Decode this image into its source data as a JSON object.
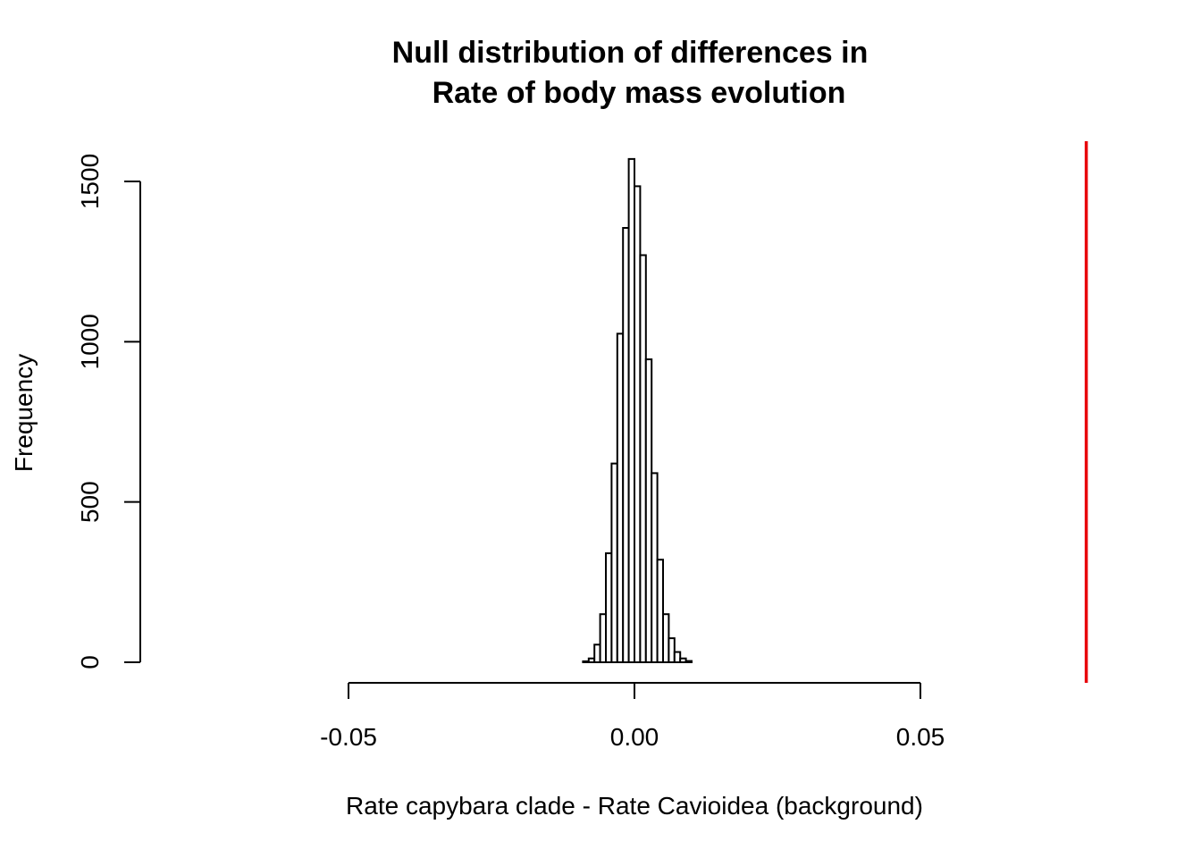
{
  "chart_data": {
    "type": "bar",
    "title": "Null distribution of differences in",
    "subtitle": "Rate of body mass evolution",
    "xlabel": "Rate capybara clade - Rate Cavioidea (background)",
    "ylabel": "Frequency",
    "xlim": [
      -0.05,
      0.05
    ],
    "ylim": [
      0,
      1500
    ],
    "x_ticks": [
      -0.05,
      0.0,
      0.05
    ],
    "x_tick_labels": [
      "-0.05",
      "0.00",
      "0.05"
    ],
    "y_ticks": [
      0,
      500,
      1000,
      1500
    ],
    "y_tick_labels": [
      "0",
      "500",
      "1000",
      "1500"
    ],
    "bin_width": 0.001,
    "bins": [
      {
        "x0": -0.009,
        "x1": -0.008,
        "count": 3
      },
      {
        "x0": -0.008,
        "x1": -0.007,
        "count": 12
      },
      {
        "x0": -0.007,
        "x1": -0.006,
        "count": 55
      },
      {
        "x0": -0.006,
        "x1": -0.005,
        "count": 150
      },
      {
        "x0": -0.005,
        "x1": -0.004,
        "count": 340
      },
      {
        "x0": -0.004,
        "x1": -0.003,
        "count": 620
      },
      {
        "x0": -0.003,
        "x1": -0.002,
        "count": 1025
      },
      {
        "x0": -0.002,
        "x1": -0.001,
        "count": 1355
      },
      {
        "x0": -0.001,
        "x1": 0.0,
        "count": 1570
      },
      {
        "x0": 0.0,
        "x1": 0.001,
        "count": 1485
      },
      {
        "x0": 0.001,
        "x1": 0.002,
        "count": 1270
      },
      {
        "x0": 0.002,
        "x1": 0.003,
        "count": 945
      },
      {
        "x0": 0.003,
        "x1": 0.004,
        "count": 590
      },
      {
        "x0": 0.004,
        "x1": 0.005,
        "count": 320
      },
      {
        "x0": 0.005,
        "x1": 0.006,
        "count": 150
      },
      {
        "x0": 0.006,
        "x1": 0.007,
        "count": 75
      },
      {
        "x0": 0.007,
        "x1": 0.008,
        "count": 32
      },
      {
        "x0": 0.008,
        "x1": 0.009,
        "count": 12
      },
      {
        "x0": 0.009,
        "x1": 0.01,
        "count": 4
      }
    ],
    "observed_value": 0.079,
    "observed_line_color": "#e8000b",
    "bar_fill": "#ffffff",
    "bar_stroke": "#000000",
    "grid": false,
    "legend": "none"
  }
}
